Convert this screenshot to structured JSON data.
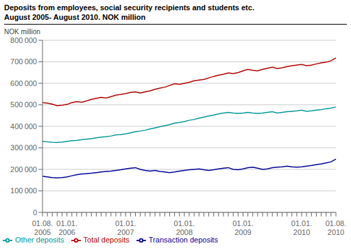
{
  "chart_data": {
    "type": "line",
    "title": "Deposits from employees, social security recipients and students etc.",
    "subtitle": "August 2005- August 2010. NOK million",
    "y_label": "NOK million",
    "categories": [
      "01.08.\n2005",
      null,
      null,
      null,
      null,
      "01.01.\n2006",
      null,
      null,
      null,
      null,
      null,
      null,
      null,
      null,
      null,
      null,
      null,
      "01.01.\n2007",
      null,
      null,
      null,
      null,
      null,
      null,
      null,
      null,
      null,
      null,
      null,
      "01.01.\n2008",
      null,
      null,
      null,
      null,
      null,
      null,
      null,
      null,
      null,
      null,
      null,
      "01.01.\n2009",
      null,
      null,
      null,
      null,
      null,
      null,
      null,
      null,
      null,
      null,
      null,
      "01.01.\n2010",
      null,
      null,
      null,
      null,
      null,
      null,
      "01.08.\n2010"
    ],
    "ylim": [
      0,
      800000
    ],
    "yticks": [
      0,
      {
        "value": 100000,
        "label": "100 000"
      },
      {
        "value": 200000,
        "label": "200 000"
      },
      {
        "value": 300000,
        "label": "300 000"
      },
      {
        "value": 400000,
        "label": "400 000"
      },
      {
        "value": 500000,
        "label": "500 000"
      },
      {
        "value": 600000,
        "label": "600 000"
      },
      {
        "value": 700000,
        "label": "700 000"
      },
      {
        "value": 800000,
        "label": "800 000"
      }
    ],
    "grid": "y",
    "legend": "lower left",
    "series": [
      {
        "name": "Total deposits",
        "color": "#b30000",
        "values": [
          510000,
          508000,
          503000,
          496000,
          498000,
          502000,
          510000,
          515000,
          512000,
          518000,
          525000,
          530000,
          535000,
          532000,
          538000,
          545000,
          548000,
          552000,
          558000,
          560000,
          555000,
          560000,
          565000,
          572000,
          578000,
          582000,
          590000,
          598000,
          595000,
          600000,
          605000,
          612000,
          615000,
          618000,
          625000,
          632000,
          638000,
          642000,
          648000,
          645000,
          650000,
          658000,
          665000,
          660000,
          658000,
          665000,
          670000,
          675000,
          668000,
          672000,
          678000,
          682000,
          685000,
          688000,
          682000,
          685000,
          690000,
          695000,
          698000,
          705000,
          718000
        ]
      },
      {
        "name": "Other deposits",
        "color": "#009999",
        "values": [
          330000,
          328000,
          326000,
          325000,
          327000,
          330000,
          333000,
          335000,
          338000,
          340000,
          343000,
          347000,
          350000,
          352000,
          355000,
          360000,
          362000,
          365000,
          370000,
          375000,
          378000,
          382000,
          388000,
          393000,
          398000,
          403000,
          408000,
          415000,
          418000,
          422000,
          428000,
          432000,
          438000,
          443000,
          448000,
          452000,
          458000,
          462000,
          465000,
          462000,
          460000,
          462000,
          465000,
          462000,
          460000,
          462000,
          465000,
          468000,
          462000,
          465000,
          468000,
          470000,
          472000,
          475000,
          470000,
          472000,
          475000,
          478000,
          482000,
          485000,
          490000
        ]
      },
      {
        "name": "Transaction deposits",
        "color": "#000099",
        "values": [
          168000,
          165000,
          162000,
          160000,
          162000,
          165000,
          170000,
          175000,
          178000,
          180000,
          182000,
          185000,
          188000,
          190000,
          192000,
          195000,
          198000,
          202000,
          205000,
          208000,
          200000,
          195000,
          192000,
          195000,
          190000,
          188000,
          185000,
          188000,
          192000,
          195000,
          198000,
          200000,
          202000,
          198000,
          195000,
          198000,
          202000,
          205000,
          208000,
          200000,
          198000,
          202000,
          208000,
          210000,
          205000,
          200000,
          202000,
          208000,
          210000,
          212000,
          215000,
          212000,
          210000,
          212000,
          215000,
          218000,
          222000,
          225000,
          230000,
          235000,
          248000
        ]
      }
    ]
  }
}
